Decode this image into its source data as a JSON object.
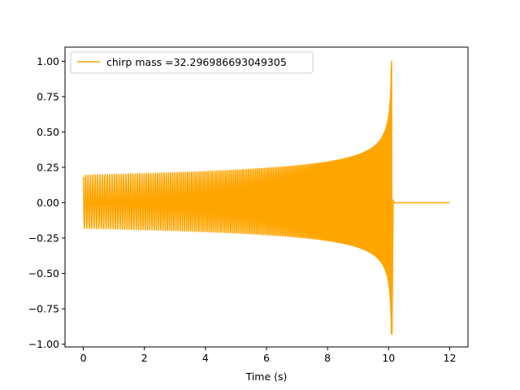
{
  "chart_data": {
    "type": "line",
    "title": "",
    "xlabel": "Time (s)",
    "ylabel": "",
    "xlim": [
      -0.6,
      12.6
    ],
    "ylim": [
      -1.02,
      1.1
    ],
    "x_ticks": [
      0,
      2,
      4,
      6,
      8,
      10,
      12
    ],
    "y_ticks": [
      -1.0,
      -0.75,
      -0.5,
      -0.25,
      0.0,
      0.25,
      0.5,
      0.75,
      1.0
    ],
    "x_tick_labels": [
      "0",
      "2",
      "4",
      "6",
      "8",
      "10",
      "12"
    ],
    "y_tick_labels": [
      "−1.00",
      "−0.75",
      "−0.50",
      "−0.25",
      "0.00",
      "0.25",
      "0.50",
      "0.75",
      "1.00"
    ],
    "grid": false,
    "legend": "upper-left",
    "series": [
      {
        "name": "chirp mass =32.296986693049305",
        "color": "#ffa500",
        "description": "chirp waveform",
        "start": 0.0,
        "coalescence": 10.1,
        "end": 12.0,
        "initial_amplitude": 0.195,
        "peak_max": 1.0,
        "peak_min": -0.93,
        "initial_cycles_per_second": 12.5
      }
    ]
  }
}
